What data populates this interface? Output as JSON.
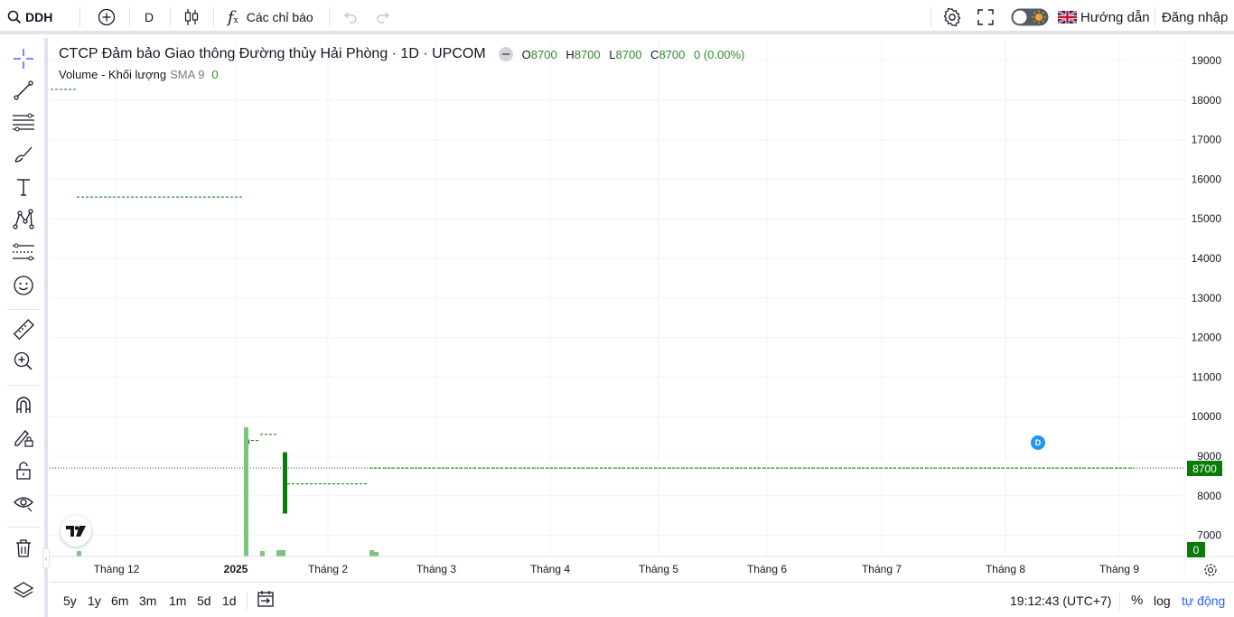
{
  "topbar": {
    "symbol": "DDH",
    "interval": "D",
    "indicators_label": "Các chỉ báo",
    "guide_label": "Hướng dẫn",
    "login_label": "Đăng nhập"
  },
  "legend": {
    "title": "CTCP Đảm bảo Giao thông Đường thủy Hải Phòng · 1D · UPCOM",
    "o_label": "O",
    "o_value": "8700",
    "h_label": "H",
    "h_value": "8700",
    "l_label": "L",
    "l_value": "8700",
    "c_label": "C",
    "c_value": "8700",
    "change": "0 (0.00%)",
    "volume_label": "Volume - Khối lượng",
    "sma_label": "SMA 9",
    "volume_value": "0"
  },
  "price_axis": {
    "ticks": [
      "19000",
      "18000",
      "17000",
      "16000",
      "15000",
      "14000",
      "13000",
      "12000",
      "11000",
      "10000",
      "9000",
      "8000",
      "7000"
    ],
    "last_price": "8700",
    "last_volume": "0"
  },
  "time_axis": {
    "ticks": [
      "Tháng 12",
      "2025",
      "Tháng 2",
      "Tháng 3",
      "Tháng 4",
      "Tháng 5",
      "Tháng 6",
      "Tháng 7",
      "Tháng 8",
      "Tháng 9"
    ]
  },
  "dividend_marker": "D",
  "bottombar": {
    "ranges": [
      "5y",
      "1y",
      "6m",
      "3m",
      "1m",
      "5d",
      "1d"
    ],
    "clock": "19:12:43 (UTC+7)",
    "percent": "%",
    "log": "log",
    "auto": "tự động"
  },
  "colors": {
    "up": "#0b7a0b",
    "volume": "#7cc47c",
    "accent": "#2962ff",
    "grid": "#f0f3fa"
  },
  "chart_data": {
    "type": "line",
    "ylim": [
      6500,
      19500
    ],
    "price_levels": [
      {
        "from": "Tháng 12",
        "value": 15550
      },
      {
        "from": "2025",
        "value": 9400
      },
      {
        "from": "2025",
        "value": 9550
      },
      {
        "from": "Tháng 2",
        "value": 8300
      },
      {
        "from": "Tháng 2",
        "value": 8700
      }
    ],
    "candle": {
      "open": 9100,
      "high": 9100,
      "low": 7550,
      "close": 7550
    },
    "last_close": 8700
  }
}
